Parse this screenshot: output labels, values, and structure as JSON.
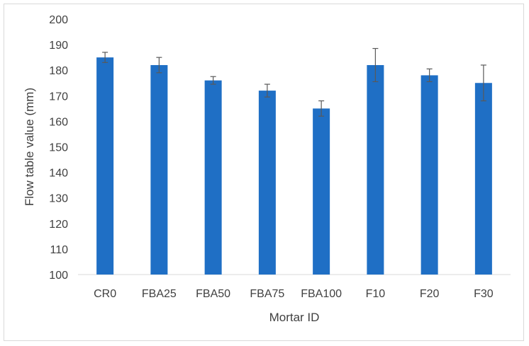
{
  "chart_data": {
    "type": "bar",
    "title": "",
    "xlabel": "Mortar ID",
    "ylabel": "Flow table value (mm)",
    "categories": [
      "CR0",
      "FBA25",
      "FBA50",
      "FBA75",
      "FBA100",
      "F10",
      "F20",
      "F30"
    ],
    "values": [
      185,
      182,
      176,
      172,
      165,
      182,
      178,
      175
    ],
    "error_plus": [
      2,
      3,
      1.5,
      2.5,
      3,
      6.5,
      2.5,
      7
    ],
    "error_minus": [
      2,
      3,
      1.5,
      2.5,
      3,
      6.5,
      2.5,
      7
    ],
    "ylim": [
      100,
      200
    ],
    "yticks": [
      100,
      110,
      120,
      130,
      140,
      150,
      160,
      170,
      180,
      190,
      200
    ],
    "grid": false,
    "legend": "none",
    "colors": {
      "bar": "#1f6fc5",
      "error_bar": "#595959",
      "axis": "#d9d9d9",
      "text": "#404040"
    }
  }
}
